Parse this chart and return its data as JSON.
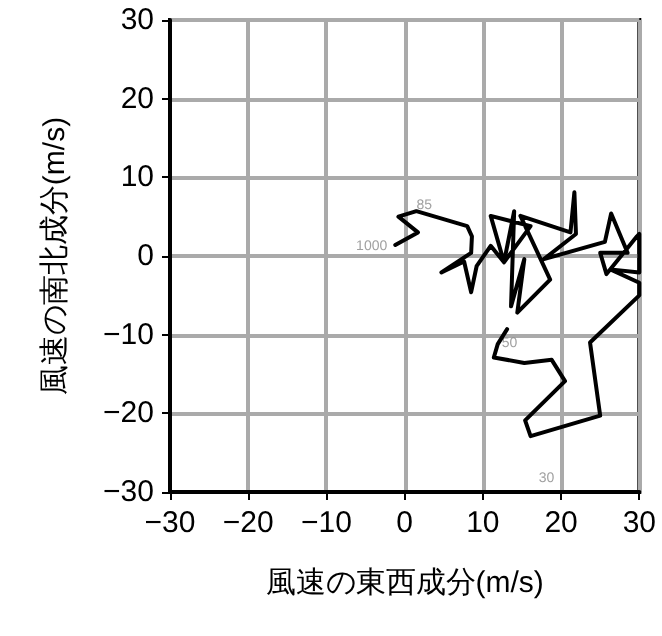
{
  "chart_data": {
    "type": "line",
    "xlabel": "風速の東西成分(m/s)",
    "ylabel": "風速の南北成分(m/s)",
    "xlim": [
      -30,
      30
    ],
    "xticks": [
      -30,
      -20,
      -10,
      0,
      10,
      20,
      30
    ],
    "ylim": [
      -30,
      30
    ],
    "yticks": [
      -30,
      -20,
      -10,
      0,
      10,
      20,
      30
    ],
    "grid": true,
    "marker": "none",
    "line_style": "solid",
    "series": [
      {
        "color": "#000000",
        "x": [
          -1.2,
          1.7,
          -0.8,
          1.5,
          8.0,
          8.6,
          8.5,
          4.7,
          7.6,
          8.5,
          9.2,
          11.0,
          12.7,
          11.0,
          16.1,
          12.7,
          14.0,
          13.6,
          15.3,
          14.4,
          18.6,
          14.8,
          21.2,
          21.7,
          21.9,
          17.8,
          25.6,
          26.4,
          28.5,
          25.0,
          25.8,
          29.7,
          30.0,
          30.0,
          26.3,
          30.0,
          30.0,
          23.7,
          25.0,
          16.1,
          15.4,
          20.5,
          18.8,
          15.3,
          11.4,
          11.9,
          13.1
        ],
        "values": [
          1.4,
          3.0,
          5.0,
          5.7,
          3.8,
          2.5,
          0.4,
          -2.1,
          -0.7,
          -4.6,
          -1.3,
          1.3,
          -0.8,
          5.1,
          3.8,
          -0.8,
          5.7,
          -6.4,
          -0.4,
          -7.2,
          -3.0,
          5.1,
          3.0,
          8.1,
          2.8,
          -0.4,
          1.8,
          5.4,
          0.4,
          0.4,
          -2.3,
          2.5,
          2.8,
          -2.1,
          -1.7,
          -3.4,
          -5.0,
          -11.0,
          -20.3,
          -22.9,
          -20.9,
          -15.9,
          -13.2,
          -13.6,
          -12.9,
          -11.2,
          -9.3
        ]
      }
    ],
    "annotations": [
      {
        "text": "1000",
        "x": -1.2,
        "y": 1.4
      },
      {
        "text": "85",
        "x": 2.5,
        "y": 6.4
      },
      {
        "text": "50",
        "x": 11.9,
        "y": -11.2
      },
      {
        "text": "30",
        "x": 16.1,
        "y": -22.9
      }
    ]
  }
}
